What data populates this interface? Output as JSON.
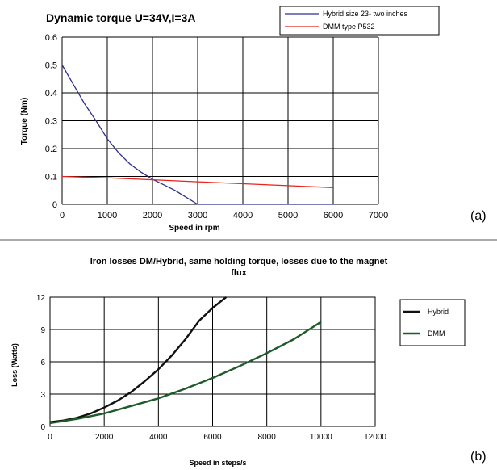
{
  "chart_data": [
    {
      "type": "line",
      "panel_label": "(a)",
      "title": "Dynamic torque U=34V,I=3A",
      "xlabel": "Speed in rpm",
      "ylabel": "Torque (Nm)",
      "xlim": [
        0,
        7000
      ],
      "ylim": [
        0,
        0.6
      ],
      "xticks": [
        "0",
        "1000",
        "2000",
        "3000",
        "4000",
        "5000",
        "6000",
        "7000"
      ],
      "yticks": [
        "0",
        "0.1",
        "0.2",
        "0.3",
        "0.4",
        "0.5",
        "0.6"
      ],
      "grid": true,
      "legend_position": "top-right",
      "series": [
        {
          "name": "Hybrid size 23- two inches",
          "color": "#2e2e8c",
          "x": [
            0,
            250,
            500,
            750,
            1000,
            1250,
            1500,
            1750,
            2000,
            2250,
            2500,
            2750,
            3000,
            3500,
            4000,
            5000,
            6000
          ],
          "y": [
            0.5,
            0.43,
            0.36,
            0.3,
            0.235,
            0.185,
            0.145,
            0.115,
            0.09,
            0.07,
            0.05,
            0.025,
            0.0,
            0.0,
            0.0,
            0.0,
            0.0
          ]
        },
        {
          "name": "DMM type P532",
          "color": "#e8231b",
          "x": [
            0,
            1000,
            2000,
            3000,
            4000,
            5000,
            6000
          ],
          "y": [
            0.1,
            0.095,
            0.088,
            0.081,
            0.074,
            0.067,
            0.06
          ]
        }
      ]
    },
    {
      "type": "line",
      "panel_label": "(b)",
      "title": "Iron losses DM/Hybrid, same holding torque, losses due to the magnet flux",
      "title_lines": [
        "Iron losses DM/Hybrid, same holding torque, losses due to the magnet",
        "flux"
      ],
      "xlabel": "Speed in steps/s",
      "ylabel": "Loss (Watts)",
      "xlim": [
        0,
        12000
      ],
      "ylim": [
        0,
        12
      ],
      "xticks": [
        "0",
        "2000",
        "4000",
        "6000",
        "8000",
        "10000",
        "12000"
      ],
      "yticks": [
        "0",
        "3",
        "6",
        "9",
        "12"
      ],
      "grid": true,
      "legend_position": "right",
      "series": [
        {
          "name": "Hybrid",
          "color": "#111111",
          "x": [
            0,
            500,
            1000,
            1500,
            2000,
            2500,
            3000,
            3500,
            4000,
            4500,
            5000,
            5500,
            6000,
            6500
          ],
          "y": [
            0.4,
            0.55,
            0.8,
            1.2,
            1.75,
            2.4,
            3.2,
            4.2,
            5.3,
            6.6,
            8.1,
            9.8,
            11.0,
            12.0
          ]
        },
        {
          "name": "DMM",
          "color": "#1e5a2a",
          "x": [
            0,
            1000,
            2000,
            3000,
            4000,
            5000,
            6000,
            7000,
            8000,
            9000,
            10000
          ],
          "y": [
            0.3,
            0.7,
            1.2,
            1.9,
            2.6,
            3.5,
            4.5,
            5.6,
            6.8,
            8.1,
            9.7
          ]
        }
      ]
    }
  ]
}
